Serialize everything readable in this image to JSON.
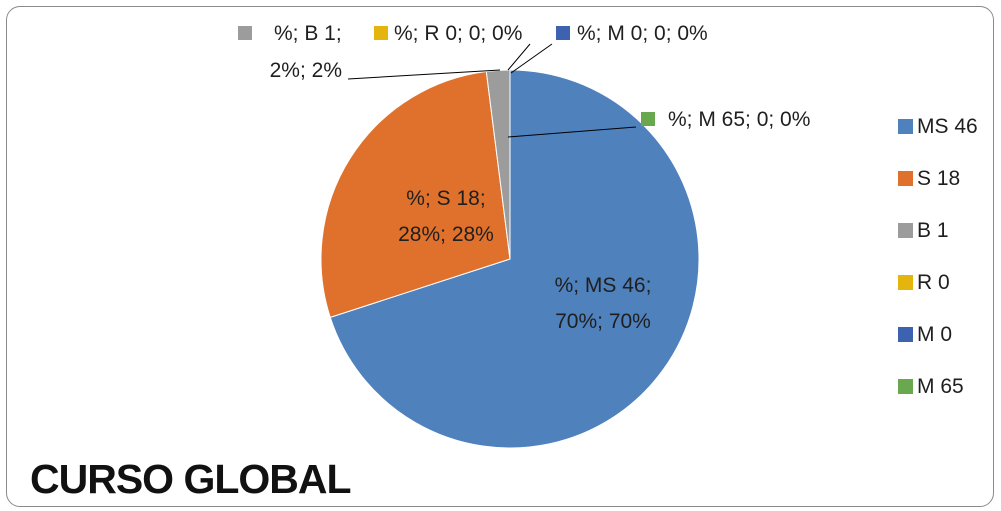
{
  "chart_data": {
    "type": "pie",
    "title": "CURSO GLOBAL",
    "legend_position": "right",
    "categories": [
      "MS 46",
      "S 18",
      "B 1",
      "R 0",
      "M 0",
      "M 65"
    ],
    "values": [
      70,
      28,
      2,
      0,
      0,
      0
    ],
    "colors": [
      "#4f81bd",
      "#e0712c",
      "#9c9c9c",
      "#e5b50f",
      "#3c62b0",
      "#6aa84f"
    ],
    "data_labels": [
      [
        "%; MS 46;",
        "70%; 70%"
      ],
      [
        "%; S 18;",
        "28%; 28%"
      ],
      [
        "%; B 1;",
        "2%; 2%"
      ],
      [
        "%; R 0; 0; 0%"
      ],
      [
        "%; M 0; 0; 0%"
      ],
      [
        "%; M 65; 0; 0%"
      ]
    ]
  }
}
